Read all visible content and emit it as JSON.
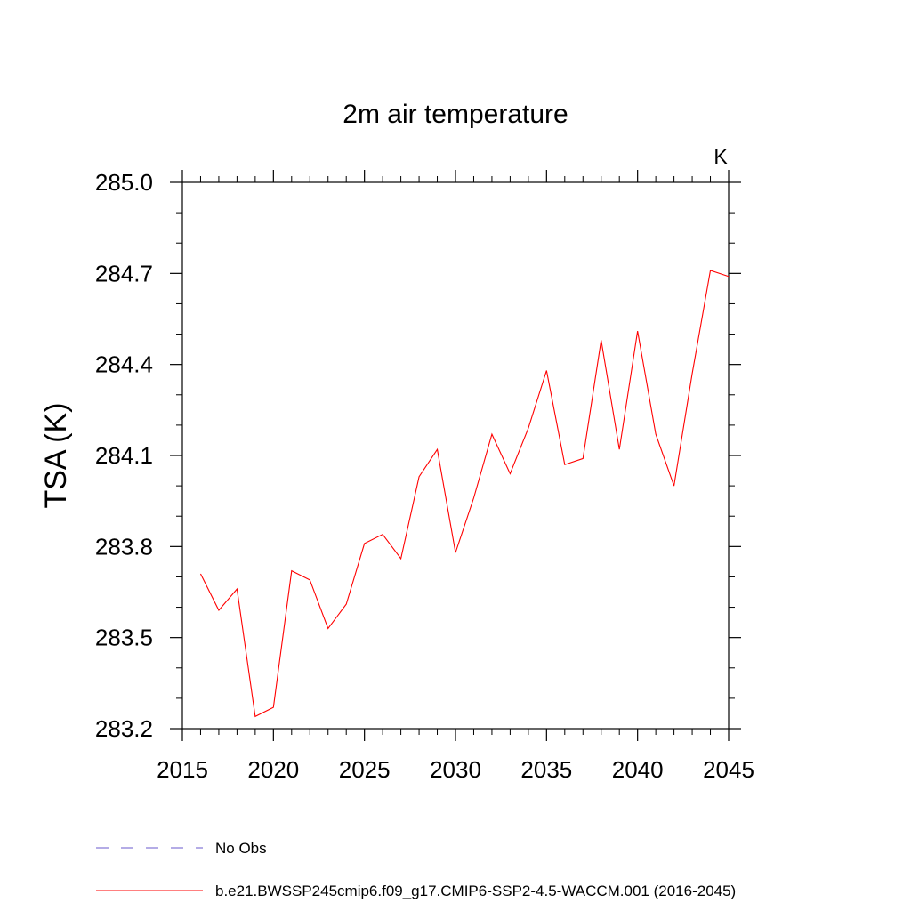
{
  "chart_data": {
    "type": "line",
    "title": "2m air temperature",
    "units": "K",
    "xlabel": "",
    "ylabel": "TSA  (K)",
    "xlim": [
      2015,
      2045
    ],
    "ylim": [
      283.2,
      285.0
    ],
    "xticks": [
      2015,
      2020,
      2025,
      2030,
      2035,
      2040,
      2045
    ],
    "xtick_labels": [
      "2015",
      "2020",
      "2025",
      "2030",
      "2035",
      "2040",
      "2045"
    ],
    "yticks": [
      283.2,
      283.5,
      283.8,
      284.1,
      284.4,
      284.7,
      285.0
    ],
    "ytick_labels": [
      "283.2",
      "283.5",
      "283.8",
      "284.1",
      "284.4",
      "284.7",
      "285.0"
    ],
    "grid": false,
    "series": [
      {
        "name": "b.e21.BWSSP245cmip6.f09_g17.CMIP6-SSP2-4.5-WACCM.001 (2016-2045)",
        "color": "#ff0000",
        "line_style": "solid",
        "x": [
          2016,
          2017,
          2018,
          2019,
          2020,
          2021,
          2022,
          2023,
          2024,
          2025,
          2026,
          2027,
          2028,
          2029,
          2030,
          2031,
          2032,
          2033,
          2034,
          2035,
          2036,
          2037,
          2038,
          2039,
          2040,
          2041,
          2042,
          2043,
          2044,
          2045
        ],
        "values": [
          283.71,
          283.59,
          283.66,
          283.24,
          283.27,
          283.72,
          283.69,
          283.53,
          283.61,
          283.81,
          283.84,
          283.76,
          284.03,
          284.12,
          283.78,
          283.96,
          284.17,
          284.04,
          284.19,
          284.38,
          284.07,
          284.09,
          284.48,
          284.12,
          284.51,
          284.17,
          284.0,
          284.37,
          284.71,
          284.69
        ]
      }
    ],
    "legend": {
      "placement": "bottom-left",
      "entries": [
        {
          "label": "No Obs",
          "color": "#6a5acd",
          "line_style": "dashed"
        },
        {
          "label": "b.e21.BWSSP245cmip6.f09_g17.CMIP6-SSP2-4.5-WACCM.001 (2016-2045)",
          "color": "#ff0000",
          "line_style": "solid"
        }
      ]
    }
  }
}
